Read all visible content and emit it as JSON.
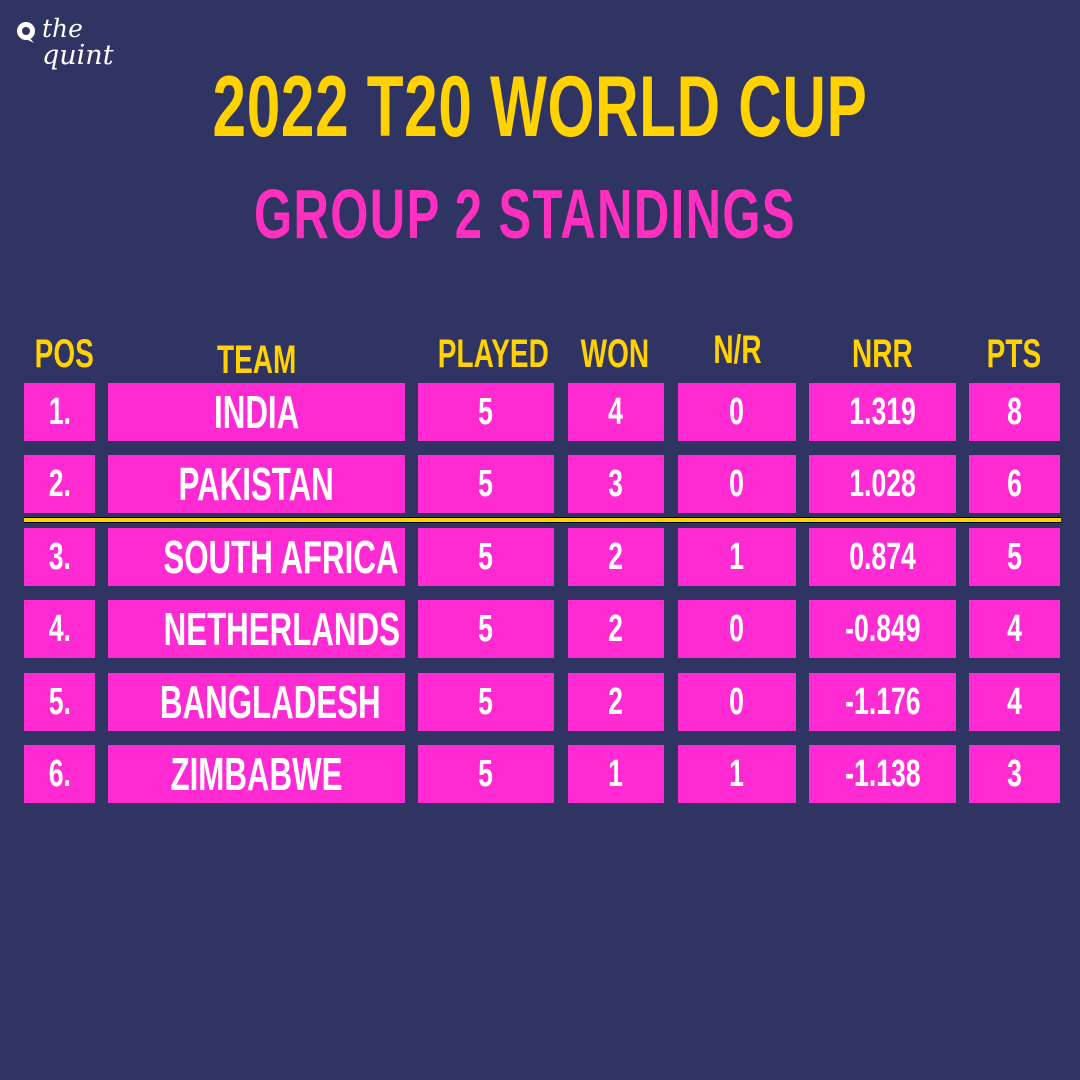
{
  "brand": {
    "line1": "the",
    "line2": "quint"
  },
  "title": "2022 T20 WORLD CUP",
  "subtitle": "GROUP 2 STANDINGS",
  "colors": {
    "background": "#303463",
    "title": "#ffd200",
    "subtitle": "#ff2fbf",
    "cell": "#ff2bd2",
    "divider": "#ffd200",
    "text": "#ffffff"
  },
  "table": {
    "headers": {
      "pos": "POS",
      "team": "TEAM",
      "played": "PLAYED",
      "won": "WON",
      "nr": "N/R",
      "nrr": "NRR",
      "pts": "PTS"
    },
    "rows": [
      {
        "pos": "1.",
        "team": "INDIA",
        "played": "5",
        "won": "4",
        "nr": "0",
        "nrr": "1.319",
        "pts": "8"
      },
      {
        "pos": "2.",
        "team": "PAKISTAN",
        "played": "5",
        "won": "3",
        "nr": "0",
        "nrr": "1.028",
        "pts": "6"
      },
      {
        "pos": "3.",
        "team": "SOUTH AFRICA",
        "played": "5",
        "won": "2",
        "nr": "1",
        "nrr": "0.874",
        "pts": "5"
      },
      {
        "pos": "4.",
        "team": "NETHERLANDS",
        "played": "5",
        "won": "2",
        "nr": "0",
        "nrr": "-0.849",
        "pts": "4"
      },
      {
        "pos": "5.",
        "team": "BANGLADESH",
        "played": "5",
        "won": "2",
        "nr": "0",
        "nrr": "-1.176",
        "pts": "4"
      },
      {
        "pos": "6.",
        "team": "ZIMBABWE",
        "played": "5",
        "won": "1",
        "nr": "1",
        "nrr": "-1.138",
        "pts": "3"
      }
    ]
  }
}
